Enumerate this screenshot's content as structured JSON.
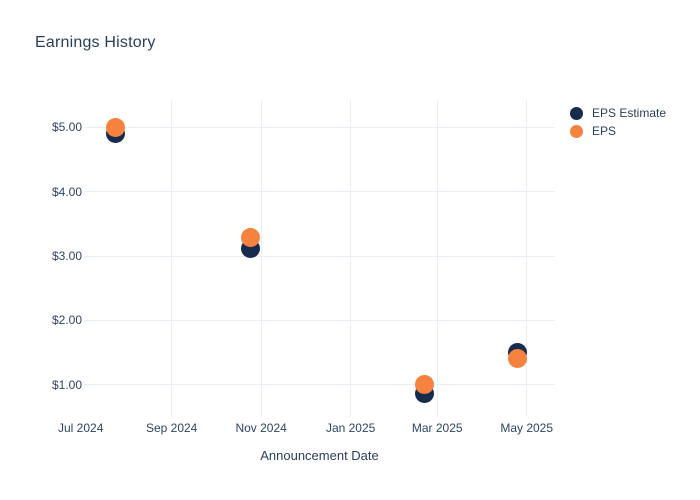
{
  "title": "Earnings History",
  "colors": {
    "estimate": "#172b4d",
    "actual": "#f5823e",
    "grid": "#e8eef4",
    "tick_text": "#2f4468",
    "title_text": "#2a3f5f",
    "background": "#ffffff"
  },
  "legend": {
    "items": [
      {
        "label": "EPS Estimate",
        "color_key": "estimate"
      },
      {
        "label": "EPS",
        "color_key": "actual"
      }
    ]
  },
  "chart_data": {
    "type": "scatter",
    "title": "Earnings History",
    "xlabel": "Announcement Date",
    "ylabel": "",
    "grid": true,
    "legend_position": "right",
    "ylim": [
      0.5,
      5.42
    ],
    "xlim": [
      "2024-07-01",
      "2025-05-01"
    ],
    "y_ticks": [
      {
        "value": 5,
        "label": "$5.00"
      },
      {
        "value": 4,
        "label": "$4.00"
      },
      {
        "value": 3,
        "label": "$3.00"
      },
      {
        "value": 2,
        "label": "$2.00"
      },
      {
        "value": 1,
        "label": "$1.00"
      }
    ],
    "x_ticks": [
      {
        "date": "2024-07-01",
        "label": "Jul 2024"
      },
      {
        "date": "2024-09-01",
        "label": "Sep 2024"
      },
      {
        "date": "2024-11-01",
        "label": "Nov 2024"
      },
      {
        "date": "2025-01-01",
        "label": "Jan 2025"
      },
      {
        "date": "2025-03-01",
        "label": "Mar 2025"
      },
      {
        "date": "2025-05-01",
        "label": "May 2025"
      }
    ],
    "series": [
      {
        "name": "EPS Estimate",
        "color_key": "estimate",
        "points": [
          {
            "date": "2024-07-25",
            "value": 4.91
          },
          {
            "date": "2024-10-25",
            "value": 3.12
          },
          {
            "date": "2025-02-20",
            "value": 0.87
          },
          {
            "date": "2025-04-25",
            "value": 1.5
          }
        ]
      },
      {
        "name": "EPS",
        "color_key": "actual",
        "points": [
          {
            "date": "2024-07-25",
            "value": 5.0
          },
          {
            "date": "2024-10-25",
            "value": 3.28
          },
          {
            "date": "2025-02-20",
            "value": 1.01
          },
          {
            "date": "2025-04-25",
            "value": 1.4
          }
        ]
      }
    ]
  }
}
